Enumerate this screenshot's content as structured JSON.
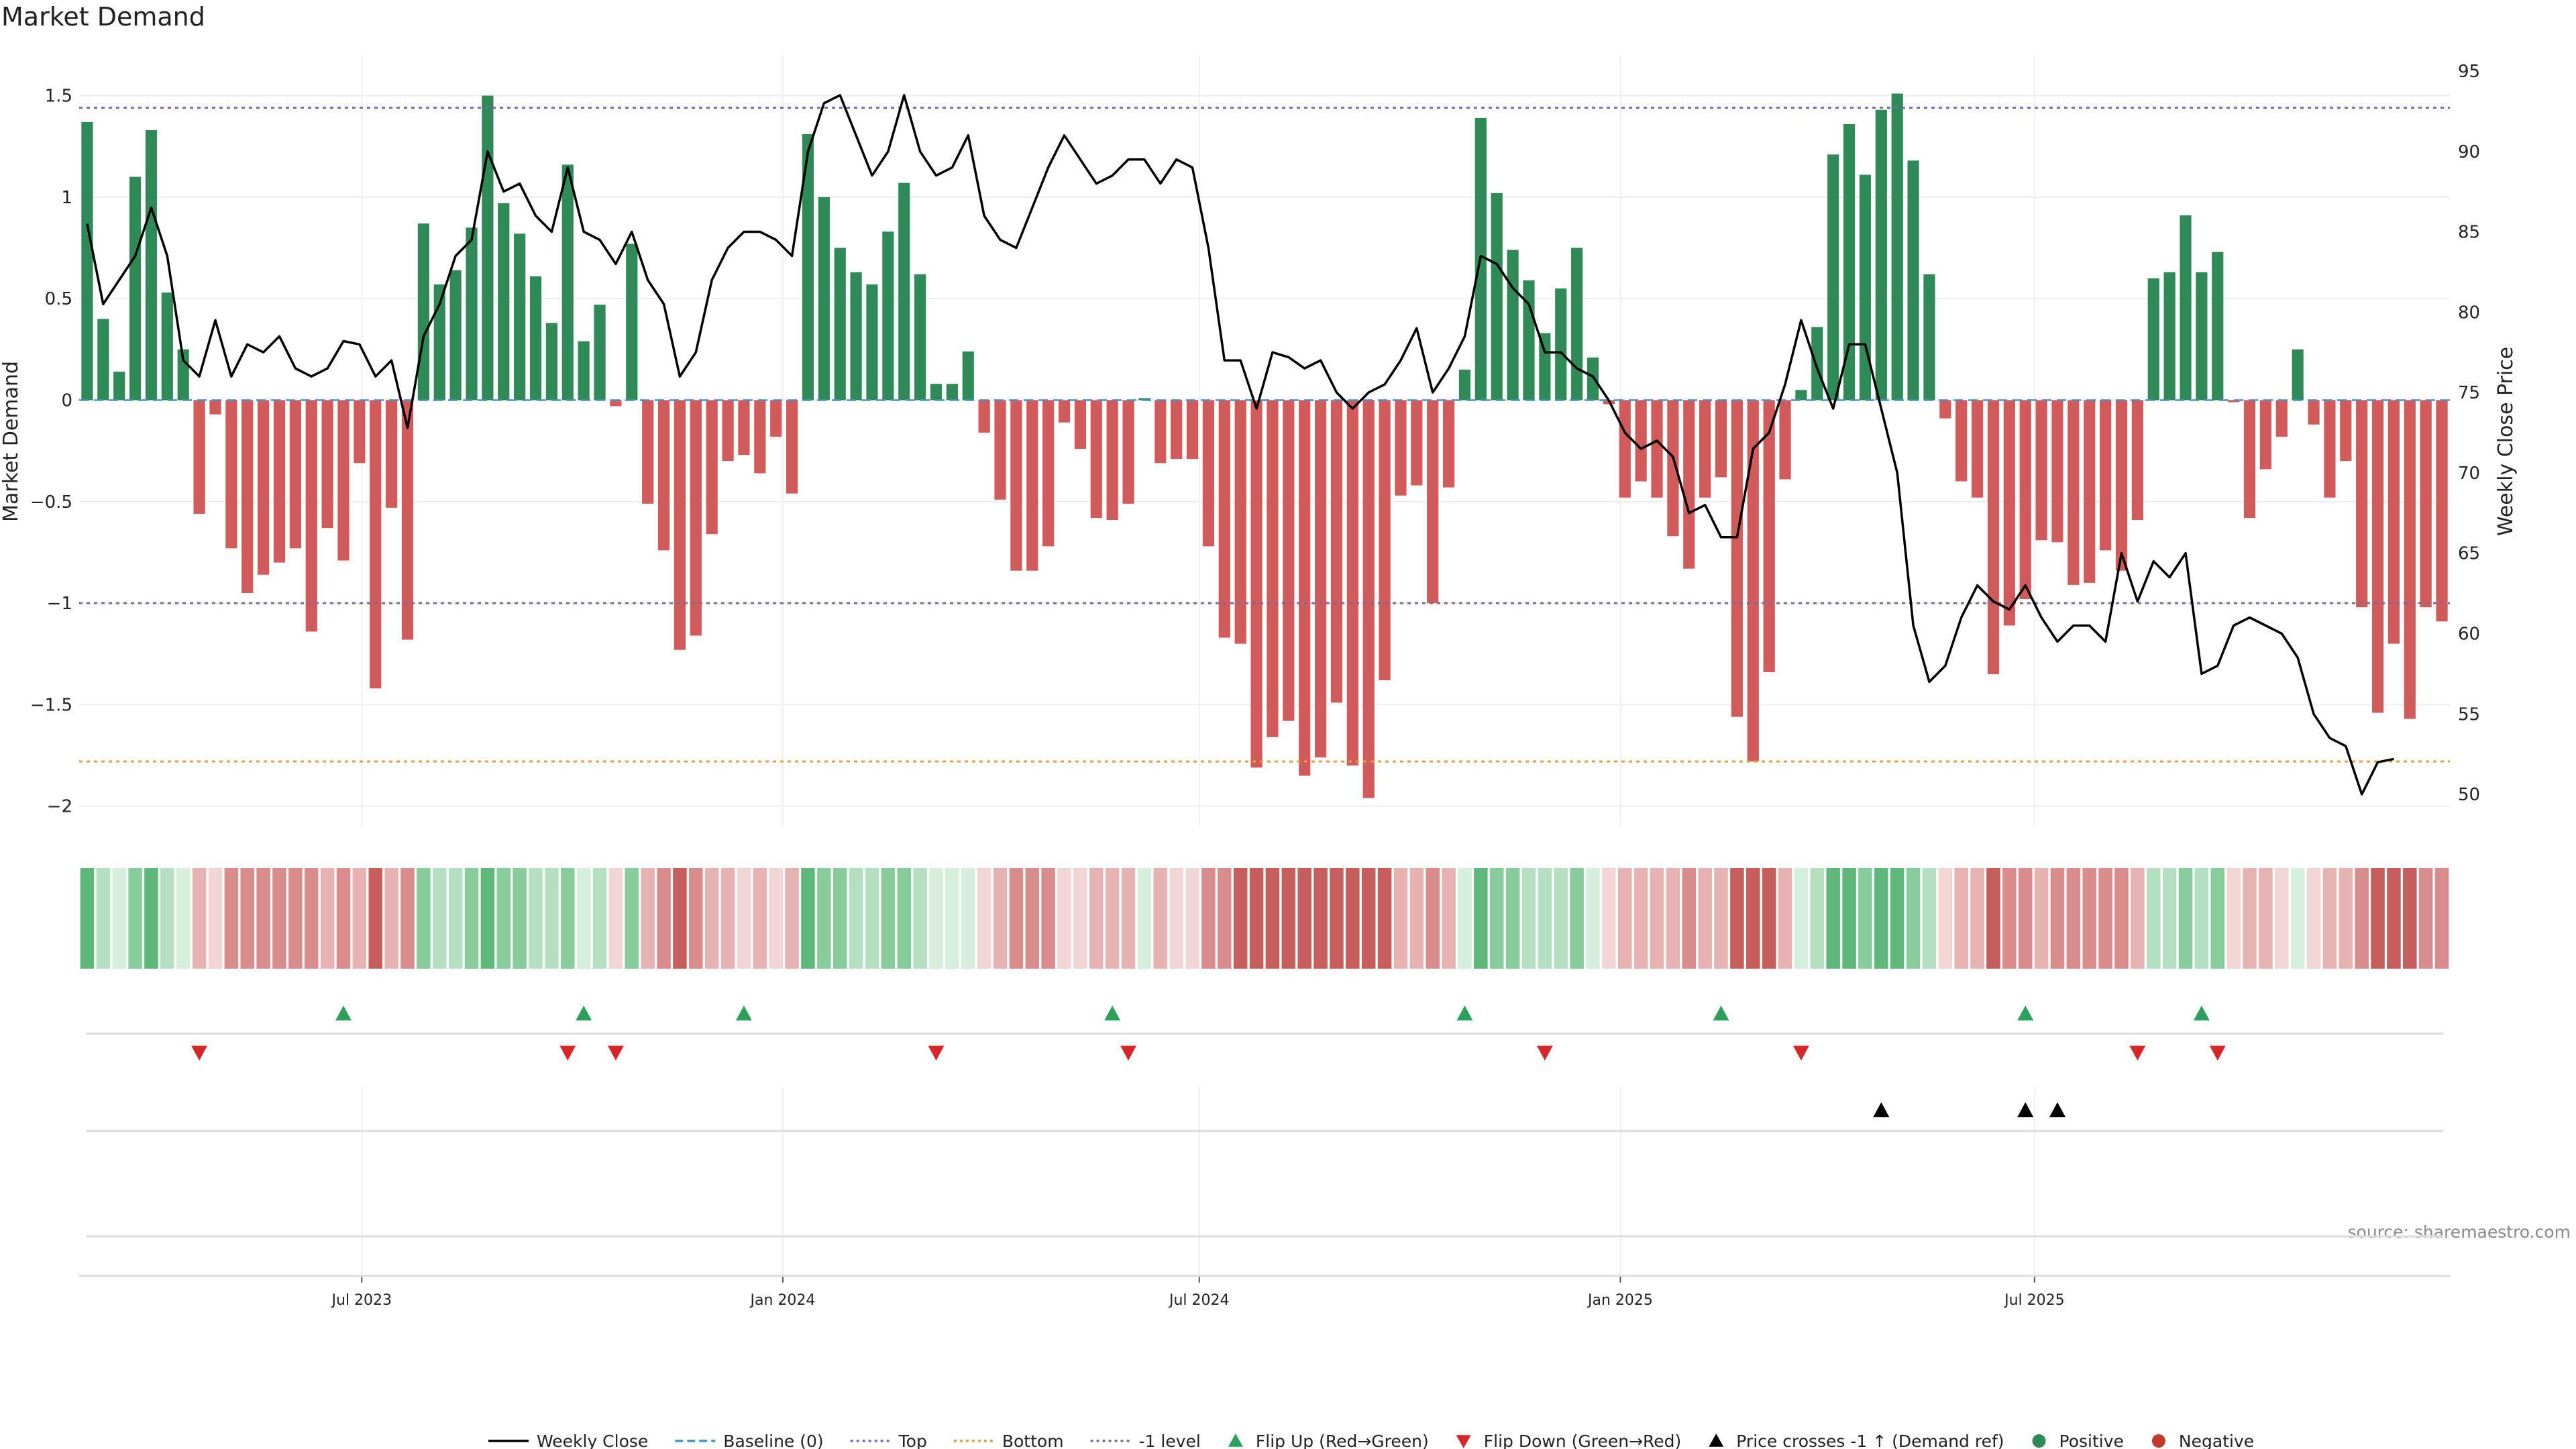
{
  "chart_data": {
    "type": "bar+line",
    "title": "Market Demand",
    "ylabel_left": "Market Demand",
    "ylabel_right": "Weekly Close Price",
    "ylim_left": [
      -2.1,
      1.7
    ],
    "ylim_right": [
      48,
      96
    ],
    "yticks_left": [
      "1.5",
      "1",
      "0.5",
      "0",
      "−0.5",
      "−1",
      "−1.5",
      "−2"
    ],
    "yticks_left_values": [
      1.5,
      1,
      0.5,
      0,
      -0.5,
      -1,
      -1.5,
      -2
    ],
    "yticks_right": [
      "95",
      "90",
      "85",
      "80",
      "75",
      "70",
      "65",
      "60",
      "55",
      "50"
    ],
    "yticks_right_values": [
      95,
      90,
      85,
      80,
      75,
      70,
      65,
      60,
      55,
      50
    ],
    "x_start": "2023-03-03",
    "x_step_days": 7,
    "x_ticks": [
      {
        "label": "Jul 2023",
        "date": "2023-07-01"
      },
      {
        "label": "Jan 2024",
        "date": "2024-01-01"
      },
      {
        "label": "Jul 2024",
        "date": "2024-07-01"
      },
      {
        "label": "Jan 2025",
        "date": "2025-01-01"
      },
      {
        "label": "Jul 2025",
        "date": "2025-07-01"
      }
    ],
    "reference_lines": [
      {
        "name": "Top",
        "value": 1.44,
        "color": "#7b68b5",
        "dash": "dotted"
      },
      {
        "name": "-1 level",
        "value": -1.0,
        "color": "#7a6a9a",
        "dash": "dotted"
      },
      {
        "name": "Bottom",
        "value": -1.78,
        "color": "#e0a040",
        "dash": "dotted"
      },
      {
        "name": "Baseline (0)",
        "value": 0,
        "color": "#4a90c2",
        "dash": "dashed"
      }
    ],
    "demand": [
      1.37,
      0.4,
      0.14,
      1.1,
      1.33,
      0.53,
      0.25,
      -0.56,
      -0.07,
      -0.73,
      -0.95,
      -0.86,
      -0.8,
      -0.73,
      -1.14,
      -0.63,
      -0.79,
      -0.31,
      -1.42,
      -0.53,
      -1.18,
      0.87,
      0.57,
      0.64,
      0.85,
      1.5,
      0.97,
      0.82,
      0.61,
      0.38,
      1.16,
      0.29,
      0.47,
      -0.03,
      0.77,
      -0.51,
      -0.74,
      -1.23,
      -1.16,
      -0.66,
      -0.3,
      -0.27,
      -0.36,
      -0.18,
      -0.46,
      1.31,
      1.0,
      0.75,
      0.63,
      0.57,
      0.83,
      1.07,
      0.62,
      0.08,
      0.08,
      0.24,
      -0.16,
      -0.49,
      -0.84,
      -0.84,
      -0.72,
      -0.11,
      -0.24,
      -0.58,
      -0.59,
      -0.51,
      0.01,
      -0.31,
      -0.29,
      -0.29,
      -0.72,
      -1.17,
      -1.2,
      -1.81,
      -1.66,
      -1.58,
      -1.85,
      -1.76,
      -1.49,
      -1.8,
      -1.96,
      -1.38,
      -0.47,
      -0.42,
      -1.0,
      -0.43,
      0.15,
      1.39,
      1.02,
      0.74,
      0.59,
      0.33,
      0.55,
      0.75,
      0.21,
      -0.02,
      -0.48,
      -0.4,
      -0.48,
      -0.67,
      -0.83,
      -0.48,
      -0.38,
      -1.56,
      -1.78,
      -1.34,
      -0.39,
      0.05,
      0.36,
      1.21,
      1.36,
      1.11,
      1.43,
      1.51,
      1.18,
      0.62,
      -0.09,
      -0.4,
      -0.48,
      -1.35,
      -1.11,
      -0.98,
      -0.69,
      -0.7,
      -0.91,
      -0.9,
      -0.74,
      -0.84,
      -0.59,
      0.6,
      0.63,
      0.91,
      0.63,
      0.73,
      -0.01,
      -0.58,
      -0.34,
      -0.18,
      0.25,
      -0.12,
      -0.48,
      -0.3,
      -1.02,
      -1.54,
      -1.2,
      -1.57,
      -1.02,
      -1.09
    ],
    "weekly_close": [
      85.5,
      80.5,
      82.0,
      83.5,
      86.5,
      83.5,
      77.0,
      76.0,
      79.5,
      76.0,
      78.0,
      77.5,
      78.5,
      76.5,
      76.0,
      76.5,
      78.2,
      78.0,
      76.0,
      77.0,
      72.8,
      78.5,
      80.5,
      83.5,
      84.5,
      90.0,
      87.5,
      88.0,
      86.0,
      85.0,
      89.0,
      85.0,
      84.5,
      83.0,
      85.0,
      82.0,
      80.5,
      76.0,
      77.5,
      82.0,
      84.0,
      85.0,
      85.0,
      84.5,
      83.5,
      90.0,
      93.0,
      93.5,
      91.0,
      88.5,
      90.0,
      93.5,
      90.0,
      88.5,
      89.0,
      91.0,
      86.0,
      84.5,
      84.0,
      86.5,
      89.0,
      91.0,
      89.5,
      88.0,
      88.5,
      89.5,
      89.5,
      88.0,
      89.5,
      89.0,
      84.0,
      77.0,
      77.0,
      74.0,
      77.5,
      77.2,
      76.5,
      77.0,
      75.0,
      74.0,
      75.0,
      75.5,
      77.0,
      79.0,
      75.0,
      76.5,
      78.5,
      83.5,
      83.0,
      81.5,
      80.5,
      77.5,
      77.5,
      76.5,
      76.0,
      74.5,
      72.5,
      71.5,
      72.0,
      71.0,
      67.5,
      68.0,
      66.0,
      66.0,
      71.5,
      72.5,
      75.5,
      79.5,
      76.5,
      74.0,
      78.0,
      78.0,
      74.0,
      70.0,
      60.5,
      57.0,
      58.0,
      61.0,
      63.0,
      62.0,
      61.5,
      63.0,
      61.0,
      59.5,
      60.5,
      60.5,
      59.5,
      65.0,
      62.0,
      64.5,
      63.5,
      65.0,
      57.5,
      58.0,
      60.5,
      61.0,
      60.5,
      60.0,
      58.5,
      55.0,
      53.5,
      53.0,
      50.0,
      52.0,
      52.2
    ],
    "strip_colors": {
      "pos": [
        "#5fb87a",
        "#89cc9c",
        "#b4dfc0",
        "#d6eedc"
      ],
      "neg": [
        "#c65e5e",
        "#d88c8c",
        "#e6b2b2",
        "#f2d6d6"
      ]
    },
    "flip_up_dates": [
      "2023-06-23",
      "2023-10-06",
      "2023-12-15",
      "2024-05-24",
      "2024-10-25",
      "2025-02-14",
      "2025-06-27",
      "2025-09-12"
    ],
    "flip_down_dates": [
      "2023-04-21",
      "2023-09-29",
      "2023-10-20",
      "2024-03-08",
      "2024-05-31",
      "2024-11-29",
      "2025-03-21",
      "2025-08-15",
      "2025-09-19"
    ],
    "cross_dates": [
      "2025-04-25",
      "2025-06-27",
      "2025-07-11"
    ],
    "colors": {
      "positive": "#2f8a57",
      "negative": "#d15a5a",
      "line": "#000000",
      "flip_up": "#2ca05a",
      "flip_down": "#d62728",
      "cross": "#000000"
    },
    "legend": [
      {
        "label": "Weekly Close",
        "kind": "line",
        "color": "#000000"
      },
      {
        "label": "Baseline (0)",
        "kind": "dash",
        "color": "#4a90c2"
      },
      {
        "label": "Top",
        "kind": "dot",
        "color": "#7b68b5"
      },
      {
        "label": "Bottom",
        "kind": "dot",
        "color": "#e0a040"
      },
      {
        "label": "-1 level",
        "kind": "dot",
        "color": "#7a6a9a"
      },
      {
        "label": "Flip Up (Red→Green)",
        "kind": "tri-up",
        "color": "#2ca05a"
      },
      {
        "label": "Flip Down (Green→Red)",
        "kind": "tri-down",
        "color": "#d62728"
      },
      {
        "label": "Price crosses -1 ↑ (Demand ref)",
        "kind": "tri-up",
        "color": "#000000"
      },
      {
        "label": "Positive",
        "kind": "circle",
        "color": "#2f8a57"
      },
      {
        "label": "Negative",
        "kind": "circle",
        "color": "#c0392b"
      }
    ],
    "source": "source: sharemaestro.com"
  }
}
